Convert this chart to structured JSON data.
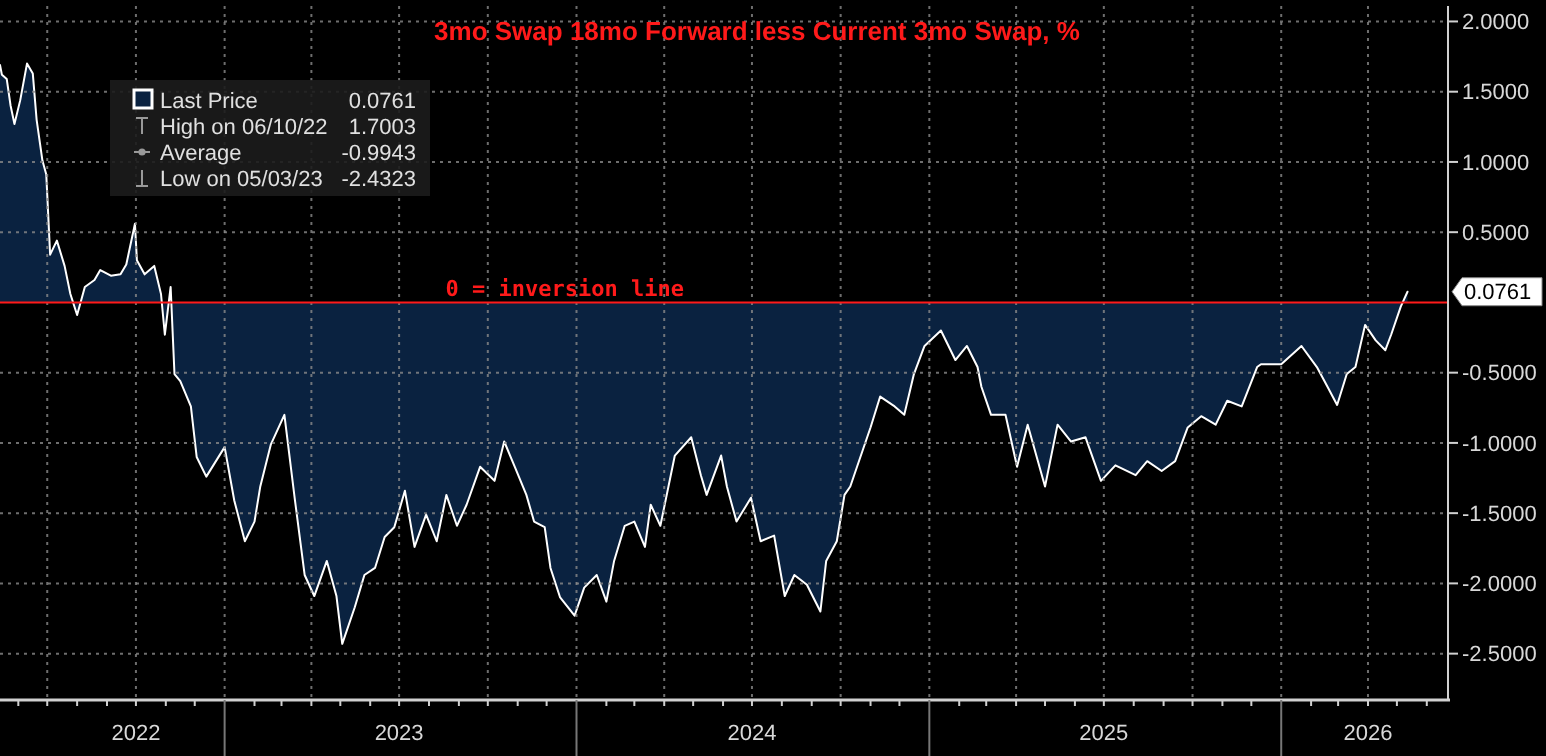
{
  "chart_data": {
    "type": "area",
    "title": "3mo Swap 18mo Forward less Current 3mo Swap, %",
    "x": [
      "2022-05-13",
      "2022-05-15",
      "2022-05-20",
      "2022-05-24",
      "2022-05-28",
      "2022-06-03",
      "2022-06-10",
      "2022-06-16",
      "2022-06-20",
      "2022-06-26",
      "2022-06-30",
      "2022-07-04",
      "2022-07-11",
      "2022-07-19",
      "2022-07-25",
      "2022-08-01",
      "2022-08-09",
      "2022-08-19",
      "2022-08-25",
      "2022-09-05",
      "2022-09-15",
      "2022-09-21",
      "2022-09-30",
      "2022-10-02",
      "2022-10-10",
      "2022-10-20",
      "2022-10-27",
      "2022-10-31",
      "2022-11-06",
      "2022-11-10",
      "2022-11-16",
      "2022-11-27",
      "2022-12-03",
      "2022-12-13",
      "2023-01-01",
      "2023-01-11",
      "2023-01-22",
      "2023-02-01",
      "2023-02-07",
      "2023-02-18",
      "2023-03-04",
      "2023-03-15",
      "2023-03-25",
      "2023-04-04",
      "2023-04-17",
      "2023-04-27",
      "2023-05-03",
      "2023-05-16",
      "2023-05-26",
      "2023-06-06",
      "2023-06-16",
      "2023-06-26",
      "2023-07-07",
      "2023-07-17",
      "2023-07-29",
      "2023-08-09",
      "2023-08-19",
      "2023-08-30",
      "2023-09-09",
      "2023-09-23",
      "2023-10-08",
      "2023-10-18",
      "2023-10-29",
      "2023-11-10",
      "2023-11-18",
      "2023-11-29",
      "2023-12-05",
      "2023-12-15",
      "2023-12-30",
      "2024-01-09",
      "2024-01-22",
      "2024-02-01",
      "2024-02-09",
      "2024-02-20",
      "2024-03-01",
      "2024-03-12",
      "2024-03-18",
      "2024-03-28",
      "2024-04-12",
      "2024-04-29",
      "2024-05-09",
      "2024-05-15",
      "2024-05-30",
      "2024-06-05",
      "2024-06-15",
      "2024-06-30",
      "2024-07-10",
      "2024-07-24",
      "2024-08-04",
      "2024-08-14",
      "2024-08-27",
      "2024-09-10",
      "2024-09-16",
      "2024-09-27",
      "2024-10-05",
      "2024-10-11",
      "2024-10-18",
      "2024-11-01",
      "2024-11-11",
      "2024-11-26",
      "2024-12-06",
      "2024-12-16",
      "2024-12-27",
      "2025-01-13",
      "2025-01-28",
      "2025-02-09",
      "2025-02-20",
      "2025-02-24",
      "2025-03-06",
      "2025-03-21",
      "2025-04-02",
      "2025-04-13",
      "2025-05-01",
      "2025-05-14",
      "2025-05-28",
      "2025-06-12",
      "2025-06-28",
      "2025-07-13",
      "2025-08-03",
      "2025-08-15",
      "2025-08-30",
      "2025-09-13",
      "2025-09-26",
      "2025-10-10",
      "2025-10-25",
      "2025-11-06",
      "2025-11-21",
      "2025-12-07",
      "2025-12-11",
      "2026-01-01",
      "2026-01-22",
      "2026-02-07",
      "2026-02-18",
      "2026-02-28",
      "2026-03-10",
      "2026-03-19",
      "2026-03-29",
      "2026-04-09",
      "2026-04-19",
      "2026-04-25",
      "2026-05-05",
      "2026-05-12"
    ],
    "series": [
      {
        "name": "Last Price",
        "color": "#0a2240",
        "values": [
          1.69,
          1.62,
          1.59,
          1.4,
          1.27,
          1.44,
          1.7,
          1.63,
          1.3,
          1.01,
          0.91,
          0.34,
          0.44,
          0.26,
          0.06,
          -0.09,
          0.11,
          0.16,
          0.23,
          0.19,
          0.2,
          0.27,
          0.56,
          0.3,
          0.2,
          0.26,
          0.06,
          -0.23,
          0.11,
          -0.51,
          -0.56,
          -0.74,
          -1.1,
          -1.24,
          -1.03,
          -1.41,
          -1.7,
          -1.56,
          -1.31,
          -1.01,
          -0.8,
          -1.41,
          -1.94,
          -2.09,
          -1.84,
          -2.09,
          -2.43,
          -2.17,
          -1.94,
          -1.89,
          -1.67,
          -1.6,
          -1.34,
          -1.74,
          -1.51,
          -1.7,
          -1.37,
          -1.59,
          -1.44,
          -1.17,
          -1.27,
          -0.99,
          -1.17,
          -1.37,
          -1.56,
          -1.6,
          -1.89,
          -2.1,
          -2.23,
          -2.03,
          -1.94,
          -2.13,
          -1.84,
          -1.59,
          -1.56,
          -1.74,
          -1.44,
          -1.59,
          -1.09,
          -0.96,
          -1.23,
          -1.37,
          -1.09,
          -1.31,
          -1.56,
          -1.39,
          -1.7,
          -1.66,
          -2.09,
          -1.94,
          -2.01,
          -2.2,
          -1.84,
          -1.7,
          -1.37,
          -1.31,
          -1.17,
          -0.89,
          -0.67,
          -0.74,
          -0.8,
          -0.51,
          -0.31,
          -0.2,
          -0.41,
          -0.31,
          -0.46,
          -0.6,
          -0.8,
          -0.8,
          -1.17,
          -0.87,
          -1.31,
          -0.87,
          -0.99,
          -0.96,
          -1.27,
          -1.16,
          -1.23,
          -1.13,
          -1.2,
          -1.13,
          -0.89,
          -0.81,
          -0.87,
          -0.7,
          -0.74,
          -0.46,
          -0.44,
          -0.44,
          -0.31,
          -0.46,
          -0.6,
          -0.73,
          -0.51,
          -0.46,
          -0.16,
          -0.27,
          -0.34,
          -0.23,
          -0.03,
          0.0761
        ]
      }
    ],
    "xlim": [
      "2022-05-13",
      "2026-06-23"
    ],
    "xticks": [
      {
        "value": "2022-07-01",
        "label": null
      },
      {
        "value": "2022-10-01",
        "label": "2022"
      },
      {
        "value": "2023-01-01",
        "label": null
      },
      {
        "value": "2023-04-01",
        "label": null
      },
      {
        "value": "2023-07-01",
        "label": "2023"
      },
      {
        "value": "2023-10-01",
        "label": null
      },
      {
        "value": "2024-01-01",
        "label": null
      },
      {
        "value": "2024-04-01",
        "label": null
      },
      {
        "value": "2024-07-01",
        "label": "2024"
      },
      {
        "value": "2024-10-01",
        "label": null
      },
      {
        "value": "2025-01-01",
        "label": null
      },
      {
        "value": "2025-04-01",
        "label": null
      },
      {
        "value": "2025-07-01",
        "label": "2025"
      },
      {
        "value": "2025-10-01",
        "label": null
      },
      {
        "value": "2026-01-01",
        "label": null
      },
      {
        "value": "2026-04-01",
        "label": "2026"
      }
    ],
    "ylim": [
      -2.83,
      2.11
    ],
    "yticks": [
      {
        "value": 2,
        "label": "2.0000"
      },
      {
        "value": 1.5,
        "label": "1.5000"
      },
      {
        "value": 1,
        "label": "1.0000"
      },
      {
        "value": 0.5,
        "label": "0.5000"
      },
      {
        "value": -0.5,
        "label": "-0.5000"
      },
      {
        "value": -1,
        "label": "-1.0000"
      },
      {
        "value": -1.5,
        "label": "-1.5000"
      },
      {
        "value": -2,
        "label": "-2.0000"
      },
      {
        "value": -2.5,
        "label": "-2.5000"
      }
    ],
    "grid": true,
    "legend": "top left",
    "ref_lines": [
      {
        "axis": "y",
        "value": 0,
        "label": "0 = inversion line",
        "color": "#ff1a1a"
      }
    ],
    "annotations": [
      {
        "text": "0.0761",
        "x": "2026-05-12",
        "y": 0.0761
      },
      "0.0761",
      "High on 06/10/22",
      "1.7003",
      "Average",
      "-0.9943",
      "Low on 05/03/23",
      "-2.4323"
    ]
  }
}
